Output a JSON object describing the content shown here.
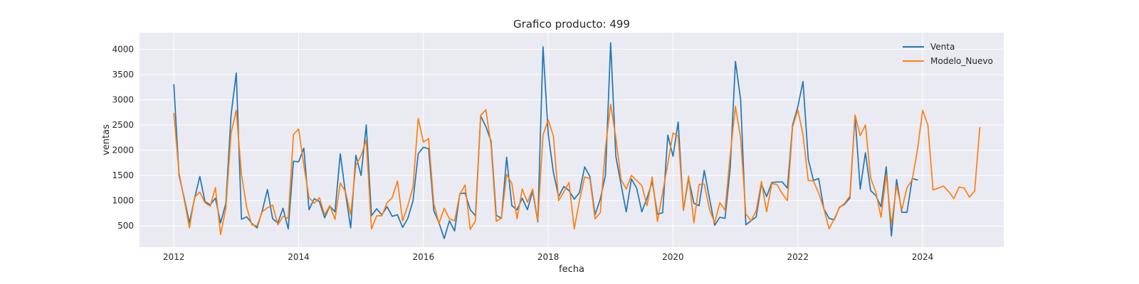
{
  "chart_data": {
    "type": "line",
    "title": "Grafico producto: 499",
    "xlabel": "fecha",
    "ylabel": "ventas",
    "xlim": [
      2011.45,
      2025.3
    ],
    "ylim": [
      80,
      4330
    ],
    "x_ticks": [
      2012,
      2014,
      2016,
      2018,
      2020,
      2022,
      2024
    ],
    "y_ticks": [
      500,
      1000,
      1500,
      2000,
      2500,
      3000,
      3500,
      4000
    ],
    "grid": true,
    "legend_position": "top-right",
    "background_color": "#eaeaf2",
    "x_start": 2012.0,
    "x_step": 0.0833333,
    "series": [
      {
        "name": "Venta",
        "color": "#1f77b4",
        "values": [
          3300,
          1500,
          1050,
          560,
          1050,
          1480,
          980,
          920,
          1050,
          560,
          950,
          2700,
          3530,
          630,
          680,
          550,
          460,
          800,
          1220,
          640,
          560,
          850,
          440,
          1780,
          1770,
          2040,
          820,
          1040,
          980,
          660,
          890,
          780,
          1930,
          1150,
          460,
          1900,
          1500,
          2500,
          700,
          840,
          720,
          880,
          690,
          720,
          470,
          650,
          1000,
          1930,
          2060,
          2030,
          800,
          560,
          250,
          600,
          400,
          1140,
          1150,
          820,
          700,
          2680,
          2470,
          2180,
          710,
          650,
          1860,
          900,
          820,
          1050,
          820,
          1190,
          580,
          4050,
          2320,
          1560,
          1080,
          1280,
          1200,
          1030,
          1160,
          1670,
          1480,
          720,
          1030,
          1500,
          4130,
          1880,
          1320,
          780,
          1430,
          1250,
          780,
          1050,
          1380,
          730,
          760,
          2300,
          1880,
          2560,
          810,
          1440,
          950,
          900,
          1600,
          1050,
          510,
          670,
          650,
          1650,
          3760,
          3000,
          520,
          600,
          680,
          1330,
          1080,
          1360,
          1370,
          1370,
          1250,
          2500,
          2860,
          3360,
          1820,
          1400,
          1440,
          840,
          650,
          620,
          870,
          930,
          1050,
          2680,
          1230,
          1950,
          1200,
          1100,
          880,
          1670,
          300,
          1420,
          770,
          770,
          1440,
          1410
        ],
        "end_index": 144
      },
      {
        "name": "Modelo_Nuevo",
        "color": "#ff7f0e",
        "values": [
          2730,
          1550,
          1020,
          460,
          1070,
          1170,
          960,
          890,
          1260,
          330,
          850,
          2340,
          2790,
          1520,
          870,
          520,
          500,
          780,
          860,
          910,
          520,
          690,
          650,
          2310,
          2420,
          1700,
          1060,
          950,
          1060,
          720,
          900,
          630,
          1350,
          1180,
          720,
          1700,
          1890,
          2200,
          440,
          700,
          700,
          960,
          1060,
          1390,
          600,
          900,
          1270,
          2630,
          2160,
          2230,
          940,
          550,
          850,
          640,
          600,
          1130,
          1310,
          430,
          600,
          2690,
          2800,
          2100,
          590,
          660,
          1520,
          1340,
          640,
          1230,
          970,
          1230,
          600,
          2300,
          2600,
          2280,
          1000,
          1170,
          1360,
          440,
          1000,
          1470,
          1440,
          640,
          760,
          2040,
          2910,
          2250,
          1420,
          1230,
          1500,
          1400,
          1300,
          900,
          1470,
          590,
          1160,
          1730,
          2340,
          2280,
          820,
          1490,
          560,
          1320,
          1330,
          830,
          560,
          960,
          810,
          1910,
          2870,
          2240,
          740,
          600,
          800,
          1380,
          780,
          1340,
          1320,
          1140,
          1000,
          2460,
          2800,
          2310,
          1400,
          1390,
          1150,
          840,
          440,
          640,
          860,
          950,
          1090,
          2700,
          2290,
          2500,
          1450,
          1170,
          670,
          1520,
          520,
          1300,
          820,
          1260,
          1410,
          2000,
          2790,
          2500,
          1210,
          1250,
          1290,
          1180,
          1040,
          1270,
          1250,
          1070,
          1190,
          2450
        ],
        "end_index": 155
      }
    ]
  }
}
